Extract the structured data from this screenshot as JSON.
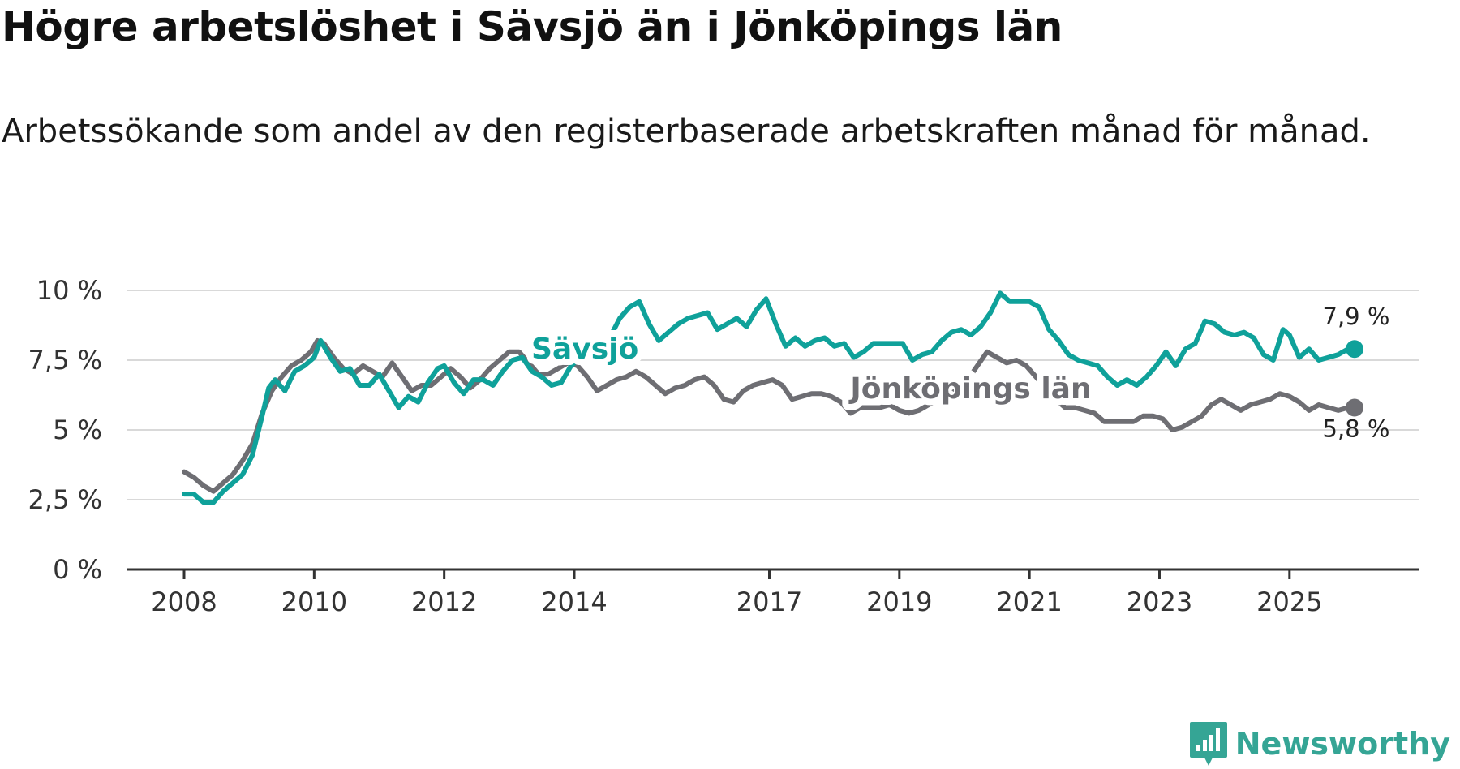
{
  "title": "Högre arbetslöshet i Sävsjö än i Jönköpings län",
  "subtitle": "Arbetssökande som andel av den registerbaserade arbetskraften månad för månad.",
  "logo": {
    "text": "Newsworthy",
    "icon": "newsworthy-chart-icon"
  },
  "colors": {
    "savsjo": "#0fa19a",
    "lan": "#6e6e73",
    "grid": "#d9d9d9",
    "axis": "#333333"
  },
  "chart_data": {
    "type": "line",
    "title": "Högre arbetslöshet i Sävsjö än i Jönköpings län",
    "ylabel": "",
    "xlabel": "",
    "ylim": [
      0,
      10
    ],
    "xlim": [
      2008.0,
      2026.1
    ],
    "y_ticks": [
      0,
      2.5,
      5,
      7.5,
      10
    ],
    "y_tick_labels": [
      "0 %",
      "2,5 %",
      "5 %",
      "7,5 %",
      "10 %"
    ],
    "x_ticks": [
      2008,
      2010,
      2012,
      2014,
      2017,
      2019,
      2021,
      2023,
      2025
    ],
    "x_tick_labels": [
      "2008",
      "2010",
      "2012",
      "2014",
      "2017",
      "2019",
      "2021",
      "2023",
      "2025"
    ],
    "grid": true,
    "series": [
      {
        "name": "Sävsjö",
        "end_label": "7,9 %",
        "x": [
          2008.0,
          2008.15,
          2008.3,
          2008.45,
          2008.6,
          2008.75,
          2008.9,
          2009.05,
          2009.2,
          2009.3,
          2009.4,
          2009.55,
          2009.7,
          2009.85,
          2010.0,
          2010.1,
          2010.25,
          2010.4,
          2010.55,
          2010.7,
          2010.85,
          2011.0,
          2011.15,
          2011.3,
          2011.45,
          2011.6,
          2011.75,
          2011.9,
          2012.0,
          2012.15,
          2012.3,
          2012.45,
          2012.6,
          2012.75,
          2012.9,
          2013.05,
          2013.2,
          2013.35,
          2013.5,
          2013.65,
          2013.8,
          2013.95,
          2014.1,
          2014.3,
          2014.5,
          2014.7,
          2014.85,
          2015.0,
          2015.15,
          2015.3,
          2015.45,
          2015.6,
          2015.75,
          2015.9,
          2016.05,
          2016.2,
          2016.35,
          2016.5,
          2016.65,
          2016.8,
          2016.95,
          2017.1,
          2017.25,
          2017.4,
          2017.55,
          2017.7,
          2017.85,
          2018.0,
          2018.15,
          2018.3,
          2018.45,
          2018.6,
          2018.75,
          2018.9,
          2019.05,
          2019.2,
          2019.35,
          2019.5,
          2019.65,
          2019.8,
          2019.95,
          2020.1,
          2020.25,
          2020.4,
          2020.55,
          2020.7,
          2020.85,
          2021.0,
          2021.15,
          2021.3,
          2021.45,
          2021.6,
          2021.75,
          2021.9,
          2022.05,
          2022.2,
          2022.35,
          2022.5,
          2022.65,
          2022.8,
          2022.95,
          2023.1,
          2023.25,
          2023.4,
          2023.55,
          2023.7,
          2023.85,
          2024.0,
          2024.15,
          2024.3,
          2024.45,
          2024.6,
          2024.75,
          2024.9,
          2025.0,
          2025.15,
          2025.3,
          2025.45,
          2025.6,
          2025.75,
          2025.9,
          2026.0
        ],
        "values": [
          2.7,
          2.7,
          2.4,
          2.4,
          2.8,
          3.1,
          3.4,
          4.1,
          5.5,
          6.5,
          6.8,
          6.4,
          7.1,
          7.3,
          7.6,
          8.2,
          7.6,
          7.1,
          7.2,
          6.6,
          6.6,
          7.0,
          6.4,
          5.8,
          6.2,
          6.0,
          6.7,
          7.2,
          7.3,
          6.7,
          6.3,
          6.8,
          6.8,
          6.6,
          7.1,
          7.5,
          7.6,
          7.1,
          6.9,
          6.6,
          6.7,
          7.3,
          7.6,
          7.8,
          8.1,
          9.0,
          9.4,
          9.6,
          8.8,
          8.2,
          8.5,
          8.8,
          9.0,
          9.1,
          9.2,
          8.6,
          8.8,
          9.0,
          8.7,
          9.3,
          9.7,
          8.8,
          8.0,
          8.3,
          8.0,
          8.2,
          8.3,
          8.0,
          8.1,
          7.6,
          7.8,
          8.1,
          8.1,
          8.1,
          8.1,
          7.5,
          7.7,
          7.8,
          8.2,
          8.5,
          8.6,
          8.4,
          8.7,
          9.2,
          9.9,
          9.6,
          9.6,
          9.6,
          9.4,
          8.6,
          8.2,
          7.7,
          7.5,
          7.4,
          7.3,
          6.9,
          6.6,
          6.8,
          6.6,
          6.9,
          7.3,
          7.8,
          7.3,
          7.9,
          8.1,
          8.9,
          8.8,
          8.5,
          8.4,
          8.5,
          8.3,
          7.7,
          7.5,
          8.6,
          8.4,
          7.6,
          7.9,
          7.5,
          7.6,
          7.7,
          7.9,
          7.9
        ]
      },
      {
        "name": "Jönköpings län",
        "end_label": "5,8 %",
        "x": [
          2008.0,
          2008.15,
          2008.3,
          2008.45,
          2008.6,
          2008.75,
          2008.9,
          2009.05,
          2009.2,
          2009.35,
          2009.5,
          2009.65,
          2009.8,
          2009.95,
          2010.05,
          2010.15,
          2010.3,
          2010.45,
          2010.6,
          2010.75,
          2010.9,
          2011.05,
          2011.2,
          2011.35,
          2011.5,
          2011.65,
          2011.8,
          2011.95,
          2012.1,
          2012.25,
          2012.4,
          2012.55,
          2012.7,
          2012.85,
          2013.0,
          2013.15,
          2013.3,
          2013.45,
          2013.6,
          2013.75,
          2013.9,
          2014.05,
          2014.2,
          2014.35,
          2014.5,
          2014.65,
          2014.8,
          2014.95,
          2015.1,
          2015.25,
          2015.4,
          2015.55,
          2015.7,
          2015.85,
          2016.0,
          2016.15,
          2016.3,
          2016.45,
          2016.6,
          2016.75,
          2016.9,
          2017.05,
          2017.2,
          2017.35,
          2017.5,
          2017.65,
          2017.8,
          2017.95,
          2018.1,
          2018.25,
          2018.4,
          2018.55,
          2018.7,
          2018.85,
          2019.0,
          2019.15,
          2019.3,
          2019.45,
          2019.6,
          2019.75,
          2019.9,
          2020.05,
          2020.2,
          2020.35,
          2020.5,
          2020.65,
          2020.8,
          2020.95,
          2021.1,
          2021.25,
          2021.4,
          2021.55,
          2021.7,
          2021.85,
          2022.0,
          2022.15,
          2022.3,
          2022.45,
          2022.6,
          2022.75,
          2022.9,
          2023.05,
          2023.2,
          2023.35,
          2023.5,
          2023.65,
          2023.8,
          2023.95,
          2024.1,
          2024.25,
          2024.4,
          2024.55,
          2024.7,
          2024.85,
          2025.0,
          2025.15,
          2025.3,
          2025.45,
          2025.6,
          2025.75,
          2025.9,
          2026.0
        ],
        "values": [
          3.5,
          3.3,
          3.0,
          2.8,
          3.1,
          3.4,
          3.9,
          4.5,
          5.6,
          6.4,
          6.9,
          7.3,
          7.5,
          7.8,
          8.2,
          8.1,
          7.6,
          7.2,
          7.0,
          7.3,
          7.1,
          6.9,
          7.4,
          6.9,
          6.4,
          6.6,
          6.6,
          6.9,
          7.2,
          6.9,
          6.5,
          6.8,
          7.2,
          7.5,
          7.8,
          7.8,
          7.4,
          7.0,
          7.0,
          7.2,
          7.4,
          7.3,
          6.9,
          6.4,
          6.6,
          6.8,
          6.9,
          7.1,
          6.9,
          6.6,
          6.3,
          6.5,
          6.6,
          6.8,
          6.9,
          6.6,
          6.1,
          6.0,
          6.4,
          6.6,
          6.7,
          6.8,
          6.6,
          6.1,
          6.2,
          6.3,
          6.3,
          6.2,
          6.0,
          5.6,
          5.8,
          5.8,
          5.8,
          5.9,
          5.7,
          5.6,
          5.7,
          5.9,
          6.1,
          6.3,
          6.5,
          6.8,
          7.3,
          7.8,
          7.6,
          7.4,
          7.5,
          7.3,
          6.9,
          6.5,
          6.1,
          5.8,
          5.8,
          5.7,
          5.6,
          5.3,
          5.3,
          5.3,
          5.3,
          5.5,
          5.5,
          5.4,
          5.0,
          5.1,
          5.3,
          5.5,
          5.9,
          6.1,
          5.9,
          5.7,
          5.9,
          6.0,
          6.1,
          6.3,
          6.2,
          6.0,
          5.7,
          5.9,
          5.8,
          5.7,
          5.8,
          5.8
        ]
      }
    ]
  }
}
